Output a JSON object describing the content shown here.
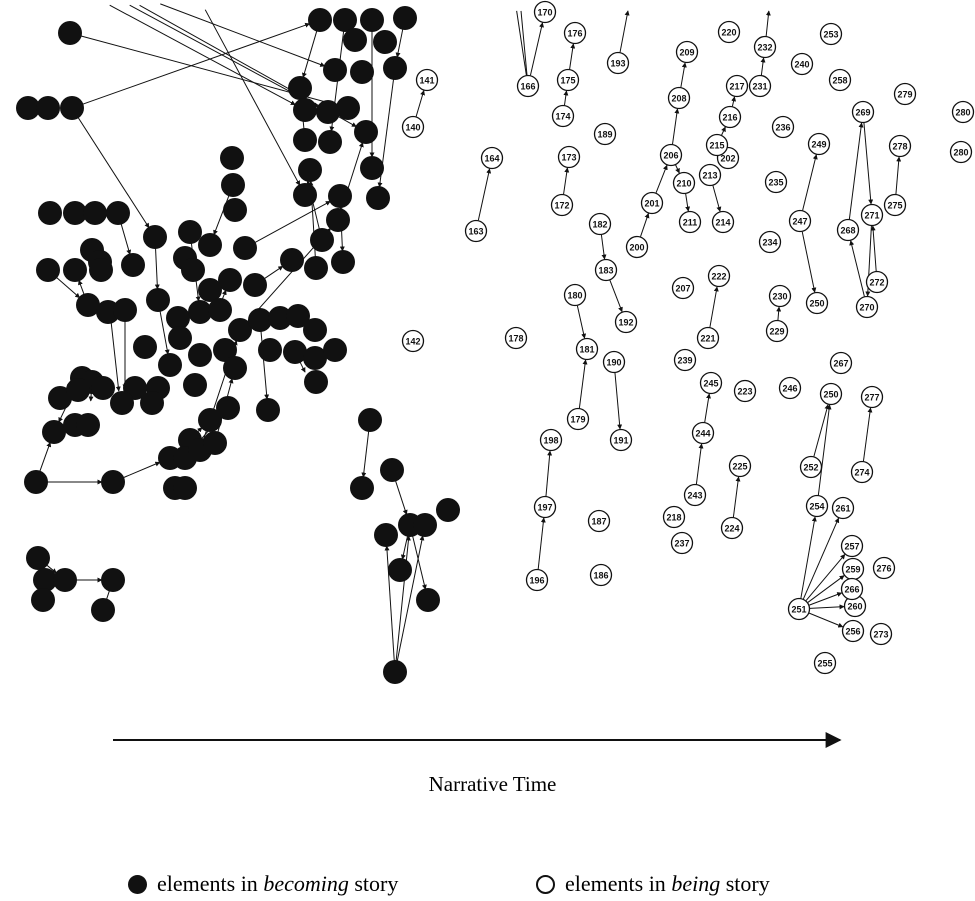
{
  "colors": {
    "becoming_fill": "#111111",
    "being_fill": "#ffffff",
    "stroke": "#111111"
  },
  "axis": {
    "label": "Narrative Time"
  },
  "legend": {
    "becoming": {
      "prefix": "elements in ",
      "emph": "becoming",
      "suffix": " story",
      "marker": "filled-circle-icon"
    },
    "being": {
      "prefix": "elements in ",
      "emph": "being",
      "suffix": " story",
      "marker": "hollow-circle-icon"
    }
  },
  "being_nodes": [
    "140",
    "141",
    "142",
    "163",
    "164",
    "166",
    "170",
    "172",
    "173",
    "174",
    "175",
    "176",
    "178",
    "179",
    "180",
    "181",
    "182",
    "183",
    "186",
    "187",
    "189",
    "190",
    "191",
    "192",
    "193",
    "196",
    "197",
    "198",
    "200",
    "201",
    "202",
    "206",
    "207",
    "208",
    "209",
    "210",
    "211",
    "213",
    "214",
    "215",
    "216",
    "217",
    "218",
    "220",
    "221",
    "222",
    "223",
    "224",
    "225",
    "229",
    "230",
    "231",
    "232",
    "234",
    "235",
    "236",
    "237",
    "239",
    "240",
    "243",
    "244",
    "245",
    "246",
    "247",
    "249",
    "250",
    "250",
    "251",
    "252",
    "253",
    "254",
    "255",
    "256",
    "257",
    "258",
    "259",
    "260",
    "261",
    "266",
    "267",
    "268",
    "269",
    "270",
    "271",
    "272",
    "273",
    "274",
    "275",
    "276",
    "277",
    "278",
    "279",
    "280"
  ]
}
